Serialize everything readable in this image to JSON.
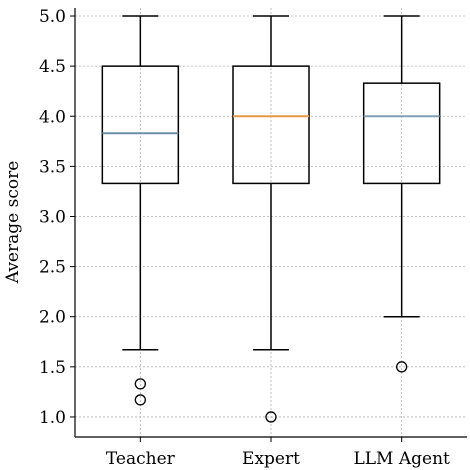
{
  "chart_data": {
    "type": "box",
    "ylabel": "Average score",
    "xlabel": "",
    "ylim": [
      0.8,
      5.08
    ],
    "yticks": [
      1.0,
      1.5,
      2.0,
      2.5,
      3.0,
      3.5,
      4.0,
      4.5,
      5.0
    ],
    "ytick_labels": [
      "1.0",
      "1.5",
      "2.0",
      "2.5",
      "3.0",
      "3.5",
      "4.0",
      "4.5",
      "5.0"
    ],
    "grid": true,
    "categories": [
      "Teacher",
      "Expert",
      "LLM Agent"
    ],
    "boxes": [
      {
        "name": "Teacher",
        "whisker_low": 1.67,
        "q1": 3.33,
        "median": 3.83,
        "q3": 4.5,
        "whisker_high": 5.0,
        "outliers": [
          1.33,
          1.17
        ],
        "median_color": "#6b8fa8"
      },
      {
        "name": "Expert",
        "whisker_low": 1.67,
        "q1": 3.33,
        "median": 4.0,
        "q3": 4.5,
        "whisker_high": 5.0,
        "outliers": [
          1.0
        ],
        "median_color": "#e8974a"
      },
      {
        "name": "LLM Agent",
        "whisker_low": 2.0,
        "q1": 3.33,
        "median": 4.0,
        "q3": 4.33,
        "whisker_high": 5.0,
        "outliers": [
          1.5
        ],
        "median_color": "#7fa1b3"
      }
    ]
  }
}
